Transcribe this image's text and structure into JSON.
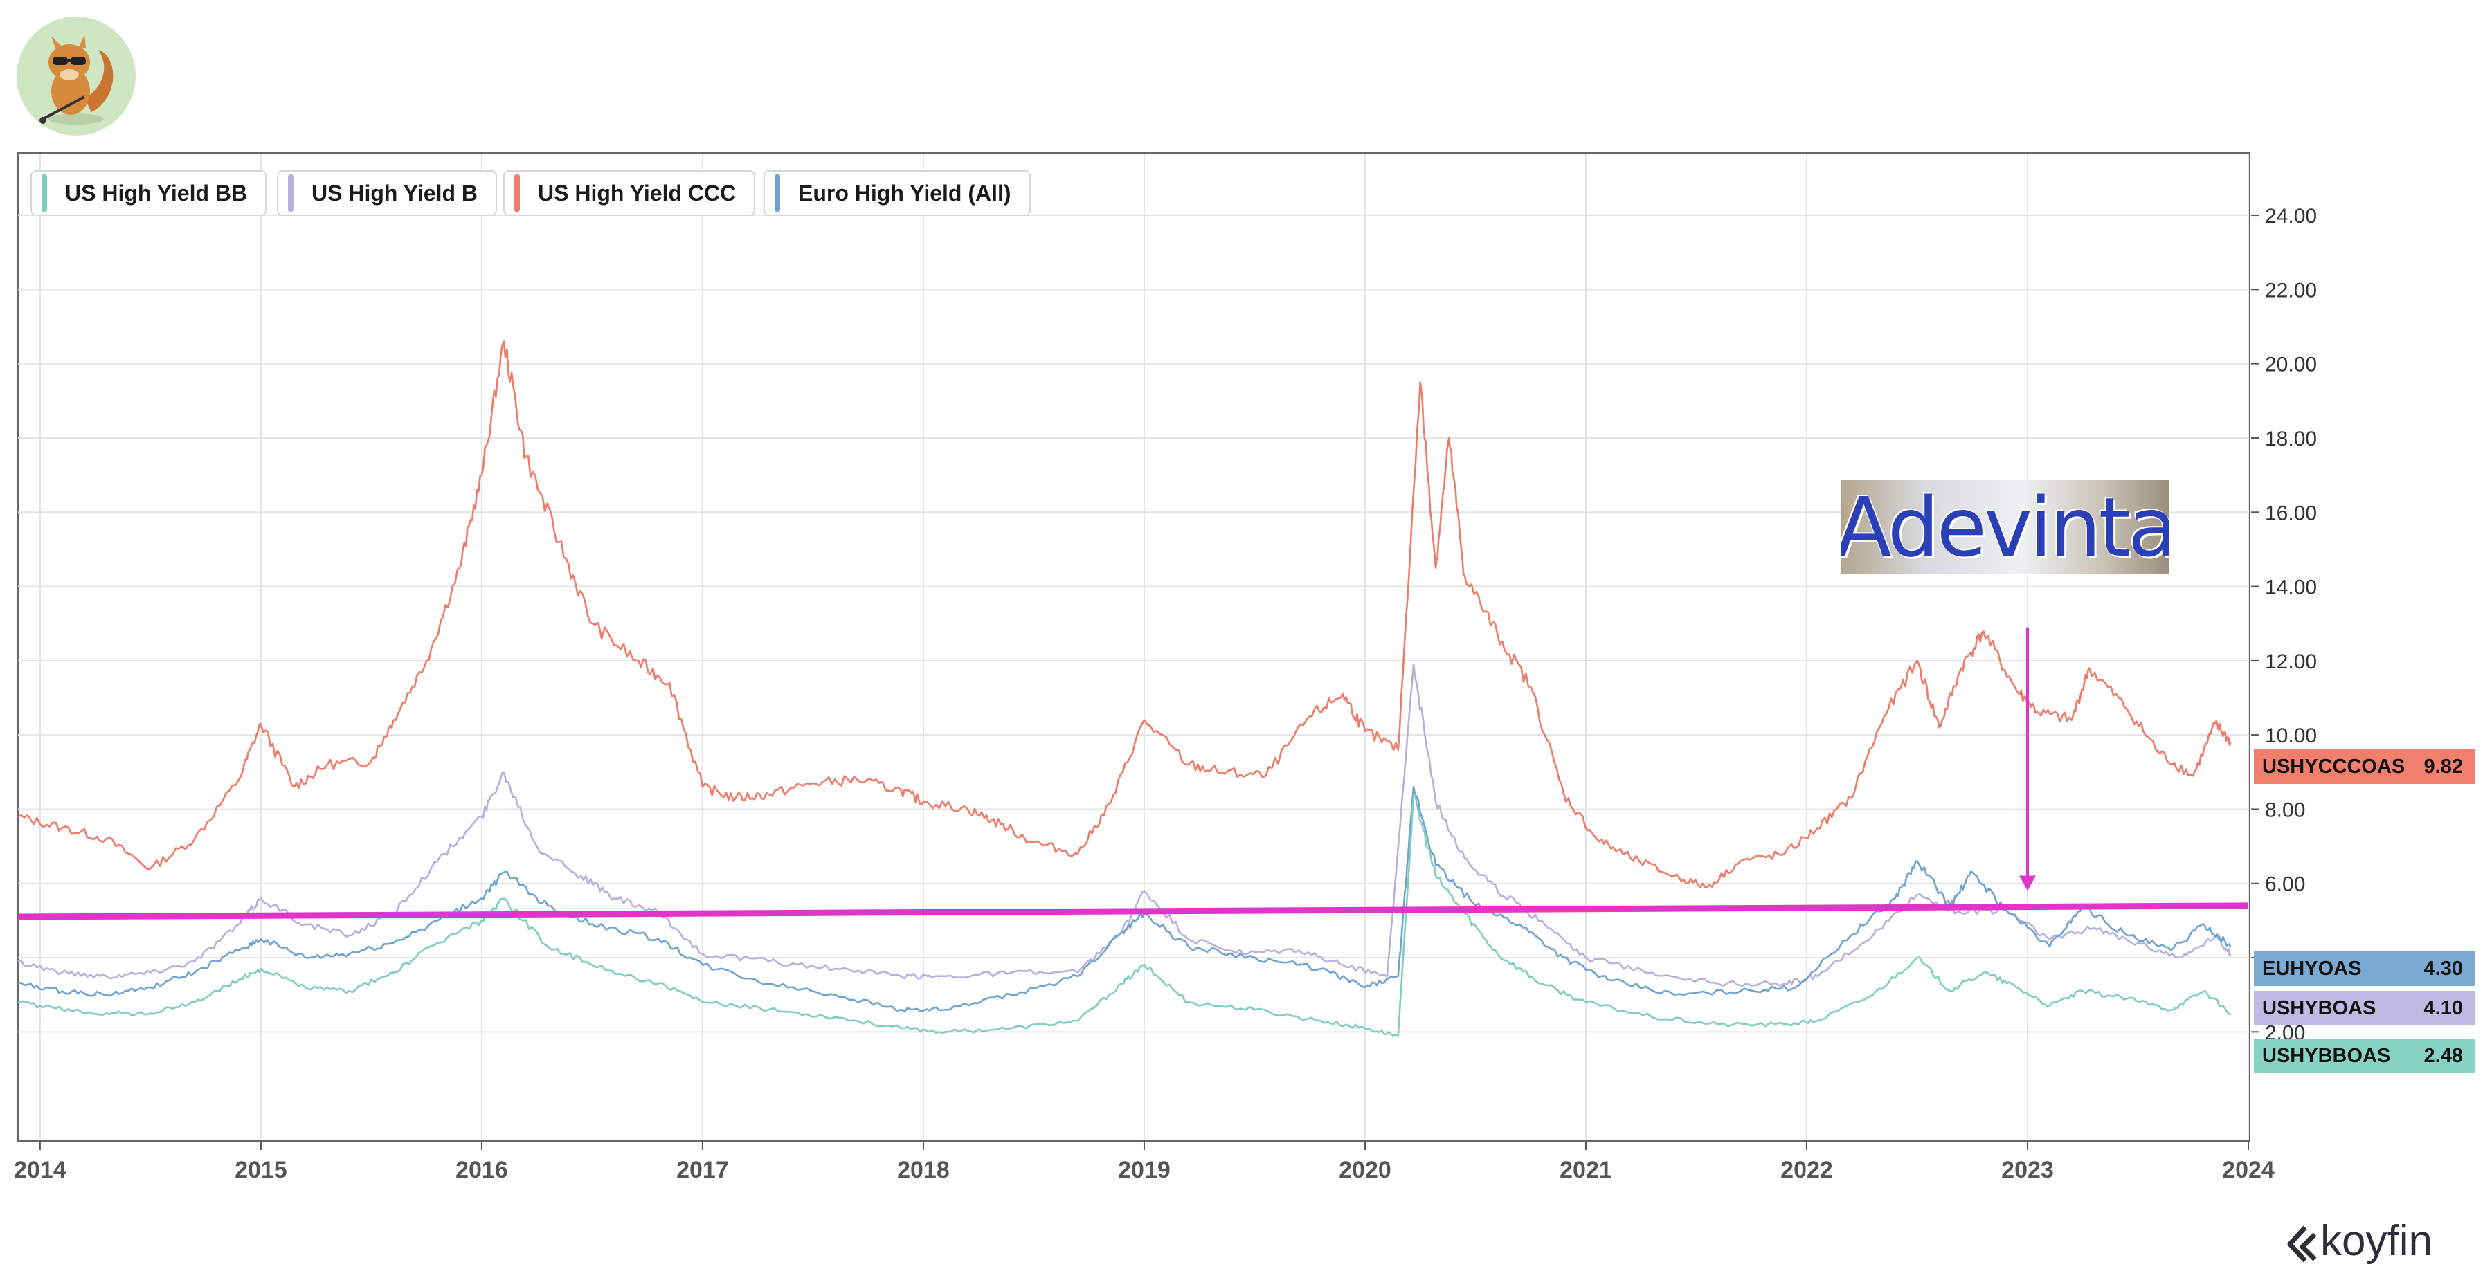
{
  "legend": [
    {
      "label": "US High Yield BB",
      "color": "#7fcdbb"
    },
    {
      "label": "US High Yield B",
      "color": "#b7b0dc"
    },
    {
      "label": "US High Yield CCC",
      "color": "#ee7b67"
    },
    {
      "label": "Euro High Yield (All)",
      "color": "#6fa3cf"
    }
  ],
  "value_tags": [
    {
      "code": "USHYCCCOAS",
      "value": "9.82",
      "color": "#f0806d"
    },
    {
      "code": "EUHYOAS",
      "value": "4.30",
      "color": "#7aaad3"
    },
    {
      "code": "USHYBOAS",
      "value": "4.10",
      "color": "#c0b9e2"
    },
    {
      "code": "USHYBBOAS",
      "value": "2.48",
      "color": "#86d3c3"
    }
  ],
  "overlay_label": "Adevinta",
  "brand": "koyfin",
  "chart_data": {
    "type": "line",
    "xlim": [
      2013.9,
      2024.0
    ],
    "ylim": [
      0,
      25
    ],
    "x_ticks": [
      "2014",
      "2015",
      "2016",
      "2017",
      "2018",
      "2019",
      "2020",
      "2021",
      "2022",
      "2023",
      "2024"
    ],
    "y_ticks": [
      "2.00",
      "4.00",
      "6.00",
      "8.00",
      "10.00",
      "12.00",
      "14.00",
      "16.00",
      "18.00",
      "20.00",
      "22.00",
      "24.00"
    ],
    "grid": true,
    "legend_position": "top-left",
    "series": [
      {
        "name": "US High Yield CCC",
        "color": "#ee7b67",
        "points": [
          [
            2013.9,
            7.8
          ],
          [
            2014.1,
            7.5
          ],
          [
            2014.3,
            7.2
          ],
          [
            2014.5,
            6.4
          ],
          [
            2014.7,
            7.2
          ],
          [
            2014.9,
            8.8
          ],
          [
            2015.0,
            10.3
          ],
          [
            2015.15,
            8.6
          ],
          [
            2015.3,
            9.2
          ],
          [
            2015.5,
            9.3
          ],
          [
            2015.6,
            10.4
          ],
          [
            2015.75,
            12.0
          ],
          [
            2015.9,
            14.5
          ],
          [
            2016.0,
            17.0
          ],
          [
            2016.1,
            20.6
          ],
          [
            2016.2,
            17.5
          ],
          [
            2016.35,
            15.2
          ],
          [
            2016.5,
            13.0
          ],
          [
            2016.7,
            12.0
          ],
          [
            2016.85,
            11.4
          ],
          [
            2017.0,
            8.6
          ],
          [
            2017.15,
            8.3
          ],
          [
            2017.3,
            8.4
          ],
          [
            2017.5,
            8.7
          ],
          [
            2017.7,
            8.8
          ],
          [
            2017.9,
            8.5
          ],
          [
            2018.0,
            8.2
          ],
          [
            2018.2,
            8.0
          ],
          [
            2018.35,
            7.6
          ],
          [
            2018.5,
            7.1
          ],
          [
            2018.7,
            6.8
          ],
          [
            2018.85,
            8.2
          ],
          [
            2019.0,
            10.4
          ],
          [
            2019.2,
            9.2
          ],
          [
            2019.35,
            9.0
          ],
          [
            2019.55,
            8.9
          ],
          [
            2019.75,
            10.5
          ],
          [
            2019.9,
            11.1
          ],
          [
            2020.0,
            10.1
          ],
          [
            2020.15,
            9.6
          ],
          [
            2020.25,
            19.5
          ],
          [
            2020.32,
            14.5
          ],
          [
            2020.38,
            18.0
          ],
          [
            2020.45,
            14.3
          ],
          [
            2020.6,
            12.7
          ],
          [
            2020.75,
            11.3
          ],
          [
            2020.9,
            8.4
          ],
          [
            2021.05,
            7.2
          ],
          [
            2021.2,
            6.7
          ],
          [
            2021.4,
            6.2
          ],
          [
            2021.55,
            5.9
          ],
          [
            2021.7,
            6.6
          ],
          [
            2021.9,
            6.8
          ],
          [
            2022.05,
            7.5
          ],
          [
            2022.2,
            8.3
          ],
          [
            2022.35,
            10.5
          ],
          [
            2022.5,
            12.0
          ],
          [
            2022.6,
            10.2
          ],
          [
            2022.7,
            11.8
          ],
          [
            2022.8,
            12.8
          ],
          [
            2022.95,
            11.2
          ],
          [
            2023.05,
            10.6
          ],
          [
            2023.2,
            10.4
          ],
          [
            2023.28,
            11.8
          ],
          [
            2023.45,
            10.7
          ],
          [
            2023.6,
            9.5
          ],
          [
            2023.75,
            8.9
          ],
          [
            2023.85,
            10.3
          ],
          [
            2023.92,
            9.82
          ]
        ]
      },
      {
        "name": "US High Yield B",
        "color": "#b7b0dc",
        "points": [
          [
            2013.9,
            3.9
          ],
          [
            2014.1,
            3.6
          ],
          [
            2014.3,
            3.5
          ],
          [
            2014.5,
            3.6
          ],
          [
            2014.7,
            3.9
          ],
          [
            2014.9,
            4.9
          ],
          [
            2015.0,
            5.6
          ],
          [
            2015.2,
            4.9
          ],
          [
            2015.4,
            4.6
          ],
          [
            2015.6,
            5.2
          ],
          [
            2015.8,
            6.6
          ],
          [
            2016.0,
            7.8
          ],
          [
            2016.1,
            9.0
          ],
          [
            2016.25,
            7.0
          ],
          [
            2016.45,
            6.2
          ],
          [
            2016.6,
            5.6
          ],
          [
            2016.8,
            5.2
          ],
          [
            2017.0,
            4.1
          ],
          [
            2017.3,
            3.9
          ],
          [
            2017.6,
            3.7
          ],
          [
            2017.9,
            3.5
          ],
          [
            2018.1,
            3.5
          ],
          [
            2018.4,
            3.6
          ],
          [
            2018.7,
            3.6
          ],
          [
            2018.9,
            4.7
          ],
          [
            2019.0,
            5.8
          ],
          [
            2019.2,
            4.5
          ],
          [
            2019.45,
            4.1
          ],
          [
            2019.7,
            4.2
          ],
          [
            2019.9,
            3.8
          ],
          [
            2020.1,
            3.5
          ],
          [
            2020.22,
            11.9
          ],
          [
            2020.32,
            8.2
          ],
          [
            2020.45,
            6.7
          ],
          [
            2020.6,
            5.8
          ],
          [
            2020.8,
            5.0
          ],
          [
            2021.0,
            4.0
          ],
          [
            2021.3,
            3.6
          ],
          [
            2021.6,
            3.3
          ],
          [
            2021.9,
            3.3
          ],
          [
            2022.05,
            3.5
          ],
          [
            2022.3,
            4.6
          ],
          [
            2022.5,
            5.7
          ],
          [
            2022.7,
            5.2
          ],
          [
            2022.9,
            5.3
          ],
          [
            2023.1,
            4.5
          ],
          [
            2023.3,
            4.8
          ],
          [
            2023.5,
            4.4
          ],
          [
            2023.7,
            4.0
          ],
          [
            2023.85,
            4.6
          ],
          [
            2023.92,
            4.1
          ]
        ]
      },
      {
        "name": "Euro High Yield (All)",
        "color": "#6fa3cf",
        "points": [
          [
            2013.9,
            3.3
          ],
          [
            2014.1,
            3.1
          ],
          [
            2014.3,
            3.0
          ],
          [
            2014.5,
            3.2
          ],
          [
            2014.7,
            3.6
          ],
          [
            2014.9,
            4.2
          ],
          [
            2015.0,
            4.5
          ],
          [
            2015.2,
            4.0
          ],
          [
            2015.4,
            4.1
          ],
          [
            2015.6,
            4.4
          ],
          [
            2015.8,
            5.0
          ],
          [
            2016.0,
            5.6
          ],
          [
            2016.1,
            6.3
          ],
          [
            2016.3,
            5.4
          ],
          [
            2016.5,
            4.9
          ],
          [
            2016.8,
            4.5
          ],
          [
            2017.0,
            3.8
          ],
          [
            2017.3,
            3.3
          ],
          [
            2017.6,
            3.0
          ],
          [
            2017.9,
            2.6
          ],
          [
            2018.1,
            2.6
          ],
          [
            2018.4,
            3.0
          ],
          [
            2018.7,
            3.5
          ],
          [
            2018.9,
            4.7
          ],
          [
            2019.0,
            5.2
          ],
          [
            2019.2,
            4.3
          ],
          [
            2019.5,
            4.0
          ],
          [
            2019.8,
            3.7
          ],
          [
            2020.0,
            3.2
          ],
          [
            2020.15,
            3.5
          ],
          [
            2020.22,
            8.6
          ],
          [
            2020.32,
            6.5
          ],
          [
            2020.5,
            5.4
          ],
          [
            2020.7,
            4.9
          ],
          [
            2020.9,
            4.0
          ],
          [
            2021.1,
            3.4
          ],
          [
            2021.4,
            3.0
          ],
          [
            2021.7,
            3.1
          ],
          [
            2021.95,
            3.2
          ],
          [
            2022.2,
            4.6
          ],
          [
            2022.4,
            5.6
          ],
          [
            2022.5,
            6.6
          ],
          [
            2022.65,
            5.4
          ],
          [
            2022.75,
            6.3
          ],
          [
            2022.9,
            5.3
          ],
          [
            2023.1,
            4.3
          ],
          [
            2023.25,
            5.4
          ],
          [
            2023.45,
            4.6
          ],
          [
            2023.65,
            4.2
          ],
          [
            2023.8,
            4.9
          ],
          [
            2023.92,
            4.3
          ]
        ]
      },
      {
        "name": "US High Yield BB",
        "color": "#7fcdbb",
        "points": [
          [
            2013.9,
            2.8
          ],
          [
            2014.1,
            2.6
          ],
          [
            2014.3,
            2.5
          ],
          [
            2014.5,
            2.5
          ],
          [
            2014.7,
            2.8
          ],
          [
            2014.9,
            3.4
          ],
          [
            2015.0,
            3.7
          ],
          [
            2015.2,
            3.2
          ],
          [
            2015.4,
            3.1
          ],
          [
            2015.6,
            3.6
          ],
          [
            2015.8,
            4.4
          ],
          [
            2016.0,
            5.0
          ],
          [
            2016.1,
            5.6
          ],
          [
            2016.3,
            4.3
          ],
          [
            2016.5,
            3.8
          ],
          [
            2016.8,
            3.3
          ],
          [
            2017.0,
            2.8
          ],
          [
            2017.3,
            2.6
          ],
          [
            2017.6,
            2.4
          ],
          [
            2017.9,
            2.1
          ],
          [
            2018.1,
            2.0
          ],
          [
            2018.4,
            2.1
          ],
          [
            2018.7,
            2.3
          ],
          [
            2018.9,
            3.3
          ],
          [
            2019.0,
            3.8
          ],
          [
            2019.2,
            2.8
          ],
          [
            2019.5,
            2.6
          ],
          [
            2019.8,
            2.3
          ],
          [
            2020.0,
            2.1
          ],
          [
            2020.15,
            1.9
          ],
          [
            2020.22,
            8.4
          ],
          [
            2020.32,
            6.2
          ],
          [
            2020.45,
            5.2
          ],
          [
            2020.6,
            4.1
          ],
          [
            2020.8,
            3.3
          ],
          [
            2021.0,
            2.8
          ],
          [
            2021.3,
            2.4
          ],
          [
            2021.6,
            2.2
          ],
          [
            2021.9,
            2.2
          ],
          [
            2022.05,
            2.3
          ],
          [
            2022.3,
            3.0
          ],
          [
            2022.5,
            4.0
          ],
          [
            2022.65,
            3.1
          ],
          [
            2022.8,
            3.6
          ],
          [
            2022.95,
            3.2
          ],
          [
            2023.1,
            2.7
          ],
          [
            2023.25,
            3.1
          ],
          [
            2023.45,
            2.9
          ],
          [
            2023.65,
            2.6
          ],
          [
            2023.8,
            3.1
          ],
          [
            2023.92,
            2.48
          ]
        ]
      }
    ],
    "annotations": [
      {
        "type": "horizontal-line",
        "y_start": 5.1,
        "y_end": 5.4,
        "color": "#e035c9"
      },
      {
        "type": "arrow",
        "x": 2023.0,
        "y_from": 12.9,
        "y_to": 5.8,
        "color": "#e035c9"
      }
    ]
  }
}
